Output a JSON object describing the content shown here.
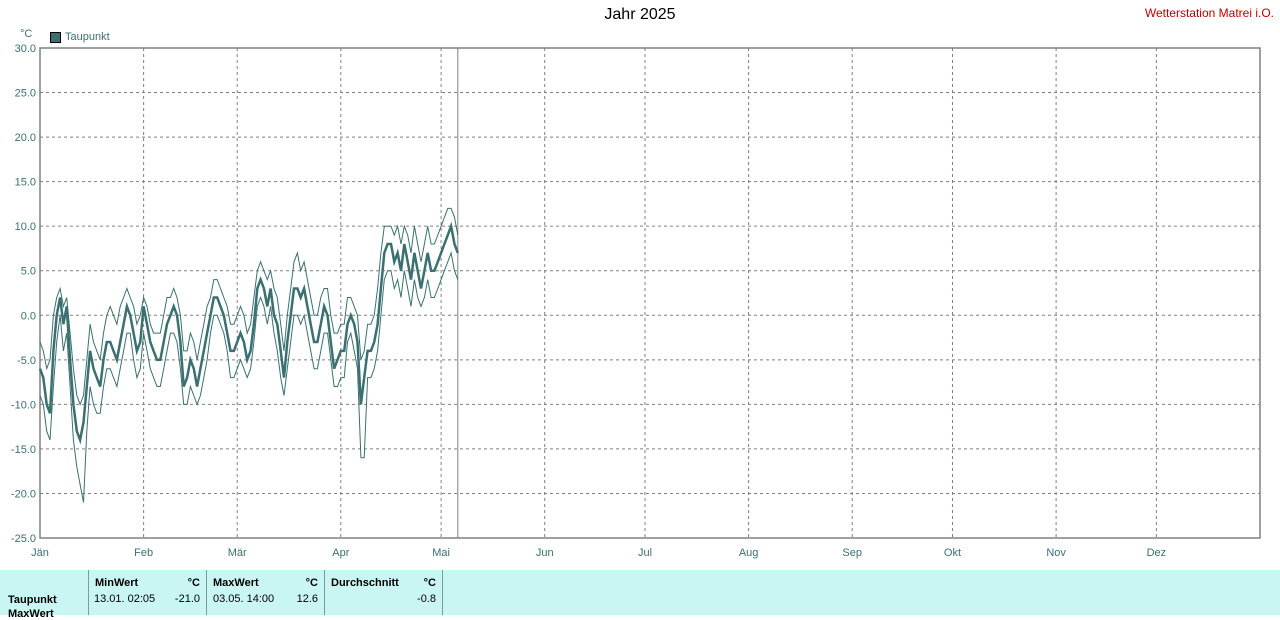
{
  "header": {
    "title": "Jahr 2025",
    "station": "Wetterstation Matrei i.O."
  },
  "legend": {
    "label": "Taupunkt",
    "color": "#3a7070"
  },
  "chart_data": {
    "type": "line",
    "title": "Jahr 2025",
    "ylabel": "°C",
    "ylim": [
      -25,
      30
    ],
    "yticks": [
      "30.0",
      "25.0",
      "20.0",
      "15.0",
      "10.0",
      "5.0",
      "0.0",
      "-5.0",
      "-10.0",
      "-15.0",
      "-20.0",
      "-25.0"
    ],
    "ytick_values": [
      30,
      25,
      20,
      15,
      10,
      5,
      0,
      -5,
      -10,
      -15,
      -20,
      -25
    ],
    "xlim": [
      1,
      366
    ],
    "months": [
      "Jän",
      "Feb",
      "Mär",
      "Apr",
      "Mai",
      "Jun",
      "Jul",
      "Aug",
      "Sep",
      "Okt",
      "Nov",
      "Dez"
    ],
    "month_start_days": [
      1,
      32,
      60,
      91,
      121,
      152,
      182,
      213,
      244,
      274,
      305,
      335
    ],
    "current_day": 126,
    "grid": true,
    "legend_position": "top-left",
    "series": [
      {
        "name": "Taupunkt",
        "x": [
          1,
          2,
          3,
          4,
          5,
          6,
          7,
          8,
          9,
          10,
          11,
          12,
          13,
          14,
          15,
          16,
          17,
          18,
          19,
          20,
          21,
          22,
          23,
          24,
          25,
          26,
          27,
          28,
          29,
          30,
          31,
          32,
          33,
          34,
          35,
          36,
          37,
          38,
          39,
          40,
          41,
          42,
          43,
          44,
          45,
          46,
          47,
          48,
          49,
          50,
          51,
          52,
          53,
          54,
          55,
          56,
          57,
          58,
          59,
          60,
          61,
          62,
          63,
          64,
          65,
          66,
          67,
          68,
          69,
          70,
          71,
          72,
          73,
          74,
          75,
          76,
          77,
          78,
          79,
          80,
          81,
          82,
          83,
          84,
          85,
          86,
          87,
          88,
          89,
          90,
          91,
          92,
          93,
          94,
          95,
          96,
          97,
          98,
          99,
          100,
          101,
          102,
          103,
          104,
          105,
          106,
          107,
          108,
          109,
          110,
          111,
          112,
          113,
          114,
          115,
          116,
          117,
          118,
          119,
          120,
          121,
          122,
          123,
          124,
          125,
          126
        ],
        "mean": [
          -6,
          -7,
          -10,
          -11,
          -4,
          0,
          2,
          -1,
          1,
          -5,
          -10,
          -13,
          -14,
          -12,
          -8,
          -4,
          -6,
          -7,
          -8,
          -5,
          -3,
          -3,
          -4,
          -5,
          -3,
          -1,
          1,
          0,
          -2,
          -4,
          -3,
          1,
          -1,
          -3,
          -4,
          -5,
          -5,
          -3,
          -1,
          0,
          1,
          0,
          -3,
          -8,
          -7,
          -5,
          -6,
          -8,
          -6,
          -4,
          -2,
          0,
          2,
          2,
          1,
          0,
          -2,
          -4,
          -4,
          -3,
          -2,
          -3,
          -5,
          -4,
          -1,
          3,
          4,
          3,
          1,
          3,
          0,
          -1,
          -4,
          -7,
          -3,
          0,
          3,
          3,
          2,
          3,
          1,
          -1,
          -3,
          -3,
          -1,
          1,
          0,
          -3,
          -6,
          -5,
          -4,
          -4,
          -1,
          0,
          -1,
          -3,
          -10,
          -7,
          -4,
          -4,
          -3,
          -1,
          3,
          7,
          8,
          8,
          6,
          7,
          5,
          8,
          6,
          4,
          7,
          5,
          3,
          5,
          7,
          5,
          5,
          6,
          7,
          8,
          9,
          10,
          8,
          7
        ],
        "max": [
          -3,
          -4,
          -6,
          -5,
          0,
          2,
          3,
          1,
          2,
          -2,
          -6,
          -9,
          -10,
          -9,
          -5,
          -1,
          -3,
          -4,
          -5,
          -2,
          0,
          1,
          0,
          -1,
          1,
          2,
          3,
          2,
          1,
          -1,
          0,
          2,
          1,
          -1,
          -2,
          -2,
          -2,
          0,
          2,
          2,
          3,
          2,
          0,
          -4,
          -4,
          -2,
          -3,
          -5,
          -3,
          -1,
          1,
          2,
          4,
          4,
          3,
          2,
          1,
          -1,
          -1,
          0,
          1,
          0,
          -2,
          -1,
          2,
          5,
          6,
          5,
          4,
          5,
          3,
          2,
          -1,
          -4,
          0,
          3,
          6,
          7,
          5,
          6,
          4,
          2,
          0,
          0,
          2,
          3,
          3,
          0,
          -2,
          -2,
          -1,
          -1,
          2,
          2,
          1,
          0,
          -5,
          -4,
          -1,
          -1,
          0,
          3,
          7,
          10,
          10,
          10,
          9,
          10,
          8,
          10,
          9,
          7,
          10,
          8,
          6,
          8,
          10,
          8,
          8,
          9,
          10,
          11,
          12,
          12,
          11,
          9
        ],
        "min": [
          -9,
          -10,
          -13,
          -14,
          -8,
          -3,
          0,
          -4,
          -2,
          -8,
          -14,
          -17,
          -19,
          -21,
          -13,
          -8,
          -10,
          -11,
          -11,
          -8,
          -6,
          -6,
          -7,
          -8,
          -6,
          -4,
          -2,
          -2,
          -5,
          -7,
          -6,
          -2,
          -4,
          -6,
          -7,
          -8,
          -8,
          -6,
          -4,
          -2,
          -2,
          -3,
          -6,
          -10,
          -10,
          -8,
          -9,
          -10,
          -9,
          -7,
          -5,
          -2,
          0,
          0,
          -1,
          -2,
          -4,
          -7,
          -7,
          -6,
          -5,
          -6,
          -7,
          -6,
          -3,
          1,
          2,
          1,
          -1,
          1,
          -2,
          -4,
          -7,
          -9,
          -6,
          -3,
          0,
          0,
          -1,
          0,
          -2,
          -4,
          -6,
          -6,
          -4,
          -2,
          -2,
          -5,
          -8,
          -8,
          -7,
          -7,
          -3,
          -2,
          -4,
          -6,
          -16,
          -16,
          -7,
          -7,
          -6,
          -4,
          0,
          4,
          5,
          5,
          3,
          4,
          2,
          5,
          3,
          1,
          4,
          2,
          1,
          2,
          4,
          2,
          2,
          3,
          4,
          5,
          6,
          7,
          5,
          4
        ]
      }
    ]
  },
  "stats": {
    "row_label": "Taupunkt",
    "row_label_2": "MaxWert",
    "min": {
      "header": "MinWert",
      "unit": "°C",
      "when": "13.01.  02:05",
      "value": "-21.0"
    },
    "max": {
      "header": "MaxWert",
      "unit": "°C",
      "when": "03.05.  14:00",
      "value": "12.6"
    },
    "avg": {
      "header": "Durchschnitt",
      "unit": "°C",
      "value": "-0.8"
    }
  }
}
